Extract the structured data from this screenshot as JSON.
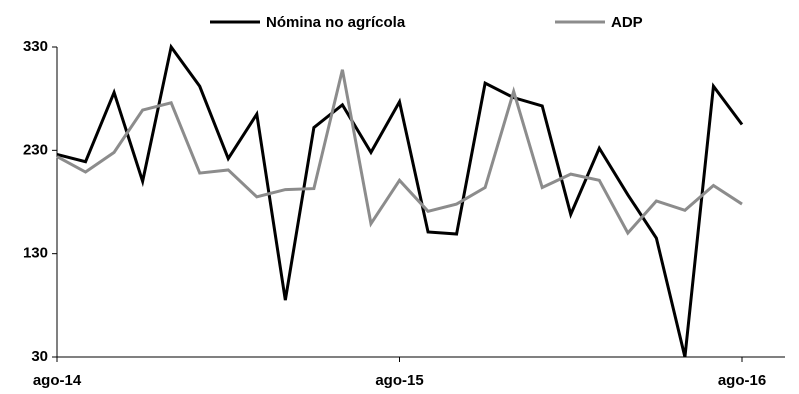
{
  "chart_data": {
    "type": "line",
    "categories": [
      "ago-14",
      null,
      null,
      null,
      null,
      null,
      null,
      null,
      null,
      null,
      null,
      null,
      "ago-15",
      null,
      null,
      null,
      null,
      null,
      null,
      null,
      null,
      null,
      null,
      null,
      "ago-16"
    ],
    "series": [
      {
        "name": "Nómina no agrícola",
        "color": "#000000",
        "values": [
          226,
          219,
          286,
          200,
          330,
          292,
          222,
          265,
          85,
          252,
          274,
          228,
          277,
          151,
          149,
          295,
          281,
          273,
          168,
          232,
          187,
          145,
          30,
          292,
          255
        ]
      },
      {
        "name": "ADP",
        "color": "#8c8c8c",
        "values": [
          224,
          209,
          228,
          269,
          276,
          208,
          211,
          185,
          192,
          193,
          308,
          159,
          201,
          171,
          178,
          194,
          287,
          194,
          207,
          201,
          150,
          181,
          172,
          196,
          178
        ]
      }
    ],
    "ylim": [
      30,
      330
    ],
    "yticks": [
      30,
      130,
      230,
      330
    ],
    "legend": "top"
  }
}
